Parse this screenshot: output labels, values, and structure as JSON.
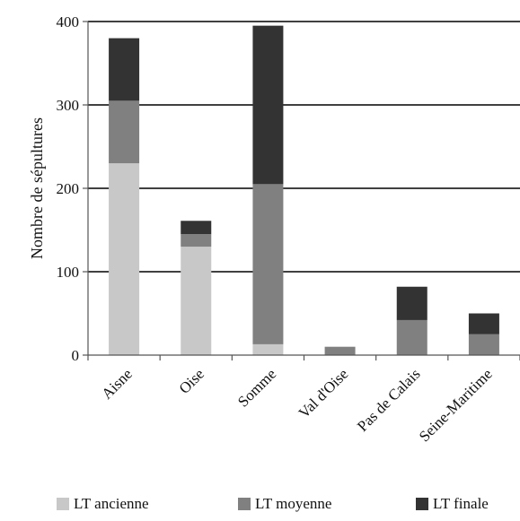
{
  "chart_data": {
    "type": "bar",
    "stacked": true,
    "categories": [
      "Aisne",
      "Oise",
      "Somme",
      "Val d'Oise",
      "Pas de Calais",
      "Seine-Maritime"
    ],
    "series": [
      {
        "name": "LT ancienne",
        "color": "#c8c8c8",
        "values": [
          230,
          130,
          13,
          0,
          0,
          0
        ]
      },
      {
        "name": "LT moyenne",
        "color": "#808080",
        "values": [
          75,
          15,
          192,
          10,
          42,
          25
        ]
      },
      {
        "name": "LT finale",
        "color": "#333333",
        "values": [
          75,
          16,
          190,
          0,
          40,
          25
        ]
      }
    ],
    "ylabel": "Nombre de sépultures",
    "ylim": [
      0,
      400
    ],
    "yticks": [
      0,
      100,
      200,
      300,
      400
    ],
    "grid": true,
    "legend_position": "bottom"
  }
}
